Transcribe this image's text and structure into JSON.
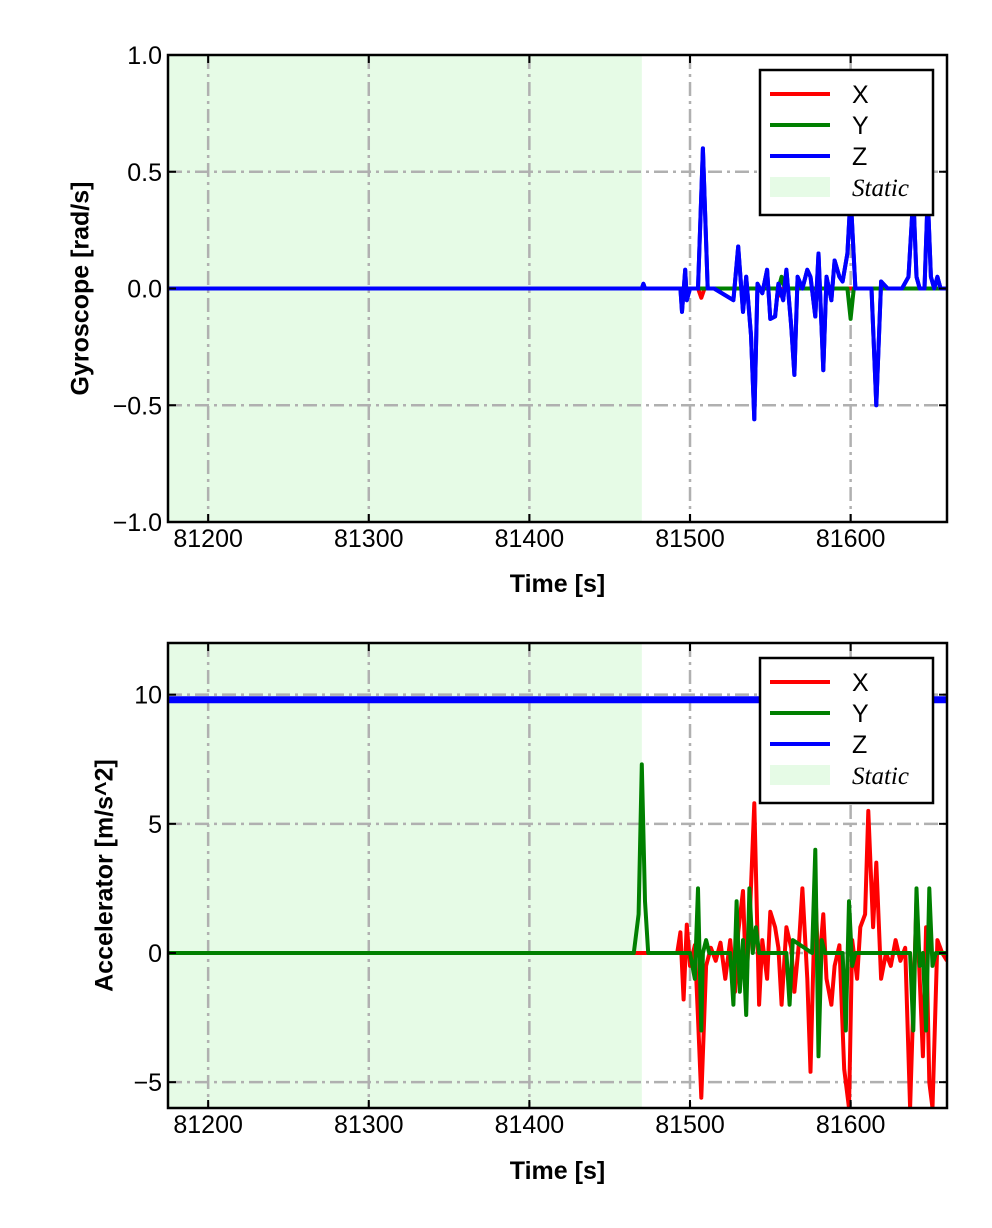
{
  "chart_data": [
    {
      "type": "line",
      "xlabel": "Time [s]",
      "ylabel": "Gyroscope [rad/s]",
      "xlim": [
        81175,
        81660
      ],
      "ylim": [
        -1.0,
        1.0
      ],
      "x_ticks": [
        81200,
        81300,
        81400,
        81500,
        81600
      ],
      "x_tick_labels": [
        "81200",
        "81300",
        "81400",
        "81500",
        "81600"
      ],
      "y_ticks": [
        1.0,
        0.5,
        0.0,
        -0.5,
        -1.0
      ],
      "y_tick_labels": [
        "1.0",
        "0.5",
        "0.0",
        "−0.5",
        "−1.0"
      ],
      "grid": true,
      "legend_position": "top-right",
      "shaded_region": {
        "label": "Static",
        "x_start": 81175,
        "x_end": 81470,
        "color": "#e6fbe6"
      },
      "series": [
        {
          "name": "X",
          "color": "#ff0000",
          "x": [
            81175,
            81505,
            81507,
            81509,
            81554,
            81556,
            81558,
            81660
          ],
          "y": [
            0.0,
            0.0,
            -0.04,
            0.0,
            0.0,
            -0.03,
            0.0,
            0.0
          ]
        },
        {
          "name": "Y",
          "color": "#008000",
          "x": [
            81175,
            81555,
            81557,
            81559,
            81598,
            81600,
            81602,
            81660
          ],
          "y": [
            0.0,
            0.0,
            0.05,
            0.0,
            0.0,
            -0.13,
            0.0,
            0.0
          ]
        },
        {
          "name": "Z",
          "color": "#0000ff",
          "x": [
            81175,
            81470,
            81471,
            81472,
            81494,
            81495,
            81497,
            81498,
            81500,
            81505,
            81508,
            81511,
            81515,
            81527,
            81530,
            81533,
            81535,
            81538,
            81540,
            81542,
            81545,
            81548,
            81550,
            81553,
            81555,
            81558,
            81560,
            81563,
            81565,
            81567,
            81570,
            81573,
            81575,
            81578,
            81580,
            81583,
            81585,
            81588,
            81590,
            81593,
            81595,
            81598,
            81600,
            81603,
            81606,
            81610,
            81613,
            81616,
            81619,
            81623,
            81627,
            81632,
            81636,
            81639,
            81641,
            81643,
            81646,
            81648,
            81650,
            81652,
            81654,
            81656,
            81658,
            81660
          ],
          "y": [
            0.0,
            0.0,
            0.02,
            0.0,
            0.0,
            -0.1,
            0.08,
            -0.05,
            0.0,
            0.0,
            0.6,
            0.0,
            0.0,
            -0.05,
            0.18,
            -0.1,
            0.05,
            -0.2,
            -0.56,
            0.02,
            -0.02,
            0.08,
            -0.13,
            -0.12,
            0.02,
            -0.05,
            0.08,
            -0.16,
            -0.37,
            0.05,
            0.0,
            0.08,
            0.05,
            -0.12,
            0.15,
            -0.35,
            0.05,
            -0.05,
            0.12,
            0.05,
            0.03,
            0.15,
            0.4,
            0.0,
            0.0,
            0.0,
            0.0,
            -0.5,
            0.03,
            0.0,
            0.0,
            0.0,
            0.05,
            0.4,
            0.05,
            0.0,
            0.0,
            0.4,
            0.05,
            0.0,
            0.05,
            0.0,
            0.0,
            0.0
          ]
        }
      ]
    },
    {
      "type": "line",
      "xlabel": "Time [s]",
      "ylabel": "Accelerator [m/s^2]",
      "xlim": [
        81175,
        81660
      ],
      "ylim": [
        -6.0,
        12.0
      ],
      "x_ticks": [
        81200,
        81300,
        81400,
        81500,
        81600
      ],
      "x_tick_labels": [
        "81200",
        "81300",
        "81400",
        "81500",
        "81600"
      ],
      "y_ticks": [
        10,
        5,
        0,
        -5
      ],
      "y_tick_labels": [
        "10",
        "5",
        "0",
        "−5"
      ],
      "grid": true,
      "legend_position": "top-right",
      "shaded_region": {
        "label": "Static",
        "x_start": 81175,
        "x_end": 81470,
        "color": "#e6fbe6"
      },
      "series": [
        {
          "name": "X",
          "color": "#ff0000",
          "x": [
            81175,
            81492,
            81494,
            81496,
            81498,
            81500,
            81503,
            81505,
            81507,
            81510,
            81513,
            81516,
            81519,
            81522,
            81525,
            81528,
            81530,
            81533,
            81535,
            81537,
            81540,
            81543,
            81545,
            81548,
            81550,
            81553,
            81555,
            81557,
            81560,
            81563,
            81565,
            81568,
            81570,
            81573,
            81575,
            81578,
            81580,
            81583,
            81585,
            81588,
            81590,
            81593,
            81596,
            81599,
            81601,
            81604,
            81606,
            81609,
            81611,
            81614,
            81616,
            81619,
            81622,
            81625,
            81628,
            81631,
            81634,
            81637,
            81639,
            81641,
            81643,
            81645,
            81647,
            81649,
            81651,
            81654,
            81657,
            81660
          ],
          "y": [
            0.0,
            0.0,
            0.8,
            -1.8,
            1.1,
            -0.5,
            0.3,
            -2.5,
            -5.6,
            -0.5,
            0.2,
            -0.3,
            0.4,
            -1.0,
            0.5,
            -1.5,
            0.8,
            2.4,
            -1.2,
            1.0,
            5.8,
            -2.0,
            0.5,
            -1.0,
            1.6,
            1.0,
            0.2,
            -2.0,
            1.0,
            0.2,
            -1.5,
            0.5,
            2.5,
            -1.0,
            -4.6,
            2.5,
            -0.8,
            1.5,
            -1.0,
            -2.0,
            -0.5,
            0.3,
            -4.5,
            -6.0,
            0.5,
            -1.0,
            1.0,
            1.5,
            5.5,
            1.0,
            3.5,
            -1.0,
            0.0,
            -0.5,
            0.5,
            -0.3,
            0.2,
            -6.0,
            -2.0,
            2.0,
            -1.0,
            -4.0,
            1.0,
            -5.0,
            -6.0,
            0.5,
            0.0,
            -0.3
          ]
        },
        {
          "name": "Y",
          "color": "#008000",
          "x": [
            81175,
            81465,
            81468,
            81470,
            81472,
            81474,
            81476,
            81478,
            81500,
            81503,
            81505,
            81507,
            81508,
            81510,
            81512,
            81525,
            81527,
            81529,
            81531,
            81533,
            81535,
            81537,
            81539,
            81541,
            81543,
            81560,
            81562,
            81564,
            81576,
            81578,
            81580,
            81582,
            81584,
            81595,
            81597,
            81599,
            81601,
            81603,
            81637,
            81639,
            81641,
            81643,
            81645,
            81647,
            81649,
            81651,
            81653,
            81660
          ],
          "y": [
            0.0,
            0.0,
            1.5,
            7.3,
            2.0,
            0.0,
            0.0,
            0.0,
            0.0,
            -1.0,
            2.5,
            -3.0,
            0.0,
            0.5,
            0.0,
            0.0,
            -2.0,
            2.0,
            -1.5,
            0.5,
            -2.4,
            2.5,
            0.0,
            1.0,
            0.0,
            0.0,
            -2.0,
            0.5,
            0.0,
            4.0,
            -4.0,
            0.5,
            0.0,
            0.0,
            -3.0,
            2.0,
            -0.5,
            0.0,
            0.0,
            -3.0,
            2.5,
            -0.5,
            0.0,
            -3.0,
            2.5,
            -0.5,
            0.0,
            0.0
          ]
        },
        {
          "name": "Z",
          "color": "#0000ff",
          "x": [
            81175,
            81660
          ],
          "y": [
            9.8,
            9.8
          ]
        }
      ]
    }
  ]
}
